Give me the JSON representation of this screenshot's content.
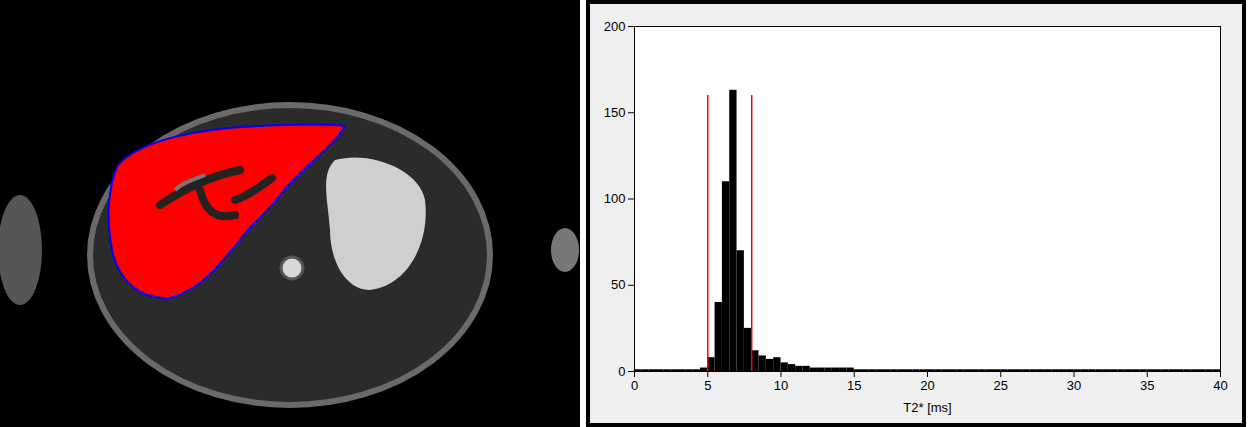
{
  "chart_data": {
    "type": "histogram",
    "xlabel": "T2* [ms]",
    "bins": [
      0,
      0.5,
      1,
      1.5,
      2,
      2.5,
      3,
      3.5,
      4,
      4.5,
      5,
      5.5,
      6,
      6.5,
      7,
      7.5,
      8,
      8.5,
      9,
      9.5,
      10,
      10.5,
      11,
      11.5,
      12,
      12.5,
      13,
      13.5,
      14,
      14.5,
      15,
      15.5,
      16,
      16.5,
      17,
      17.5,
      18,
      18.5,
      19,
      19.5,
      20,
      20.5,
      21,
      21.5,
      22,
      22.5,
      23,
      23.5,
      24,
      24.5,
      25,
      25.5,
      26,
      26.5,
      27,
      27.5,
      28,
      28.5,
      29,
      29.5,
      30,
      30.5,
      31,
      31.5,
      32,
      32.5,
      33,
      33.5,
      34,
      34.5,
      35,
      35.5,
      36,
      36.5,
      37,
      37.5,
      38,
      38.5,
      39,
      39.5,
      40
    ],
    "counts": [
      1,
      1,
      1,
      1,
      1,
      1,
      1,
      1,
      1,
      2,
      8,
      40,
      110,
      163,
      70,
      25,
      12,
      9,
      7,
      8,
      5,
      4,
      3,
      3,
      2,
      2,
      2,
      2,
      2,
      2,
      1,
      1,
      1,
      1,
      1,
      1,
      1,
      1,
      1,
      1,
      1,
      1,
      1,
      1,
      1,
      1,
      1,
      1,
      1,
      1,
      1,
      1,
      1,
      1,
      1,
      1,
      1,
      1,
      1,
      1,
      1,
      1,
      1,
      1,
      1,
      1,
      1,
      1,
      1,
      1,
      1,
      1,
      1,
      1,
      1,
      1,
      1,
      1,
      1,
      1
    ],
    "color": "#000000",
    "xlim": [
      0,
      40
    ],
    "xticks": [
      0,
      5,
      10,
      15,
      20,
      25,
      30,
      35,
      40
    ],
    "ylim": [
      0,
      200
    ],
    "yticks": [
      0,
      50,
      100,
      150,
      200
    ],
    "thresholds": {
      "x": [
        5,
        8
      ],
      "height": 160,
      "color": "#ff0000"
    }
  }
}
